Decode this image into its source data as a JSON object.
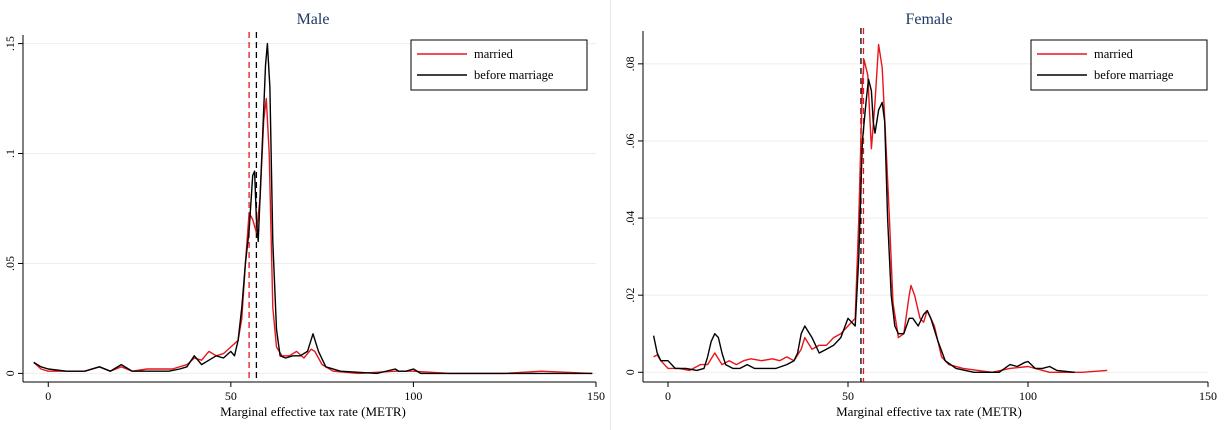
{
  "colors": {
    "married": "#e8161b",
    "before": "#000000",
    "title": "#1e3a64",
    "grid": "#eeeeee",
    "axis": "#000000"
  },
  "chart_data": [
    {
      "type": "line",
      "title": "Male",
      "xlabel": "Marginal effective tax rate (METR)",
      "ylabel": "",
      "xlim": [
        -5,
        150
      ],
      "ylim": [
        -0.003,
        0.153
      ],
      "x_ticks": [
        0,
        50,
        100,
        150
      ],
      "x_tick_labels": [
        "0",
        "50",
        "100",
        "150"
      ],
      "y_ticks": [
        0,
        0.05,
        0.1,
        0.15
      ],
      "y_tick_labels": [
        "0",
        ".05",
        ".1",
        ".15"
      ],
      "grid": true,
      "legend_position": "top-right",
      "legend": [
        "married",
        "before marriage"
      ],
      "vlines": [
        {
          "series": "married",
          "x": 55.0
        },
        {
          "series": "before marriage",
          "x": 57.0
        }
      ],
      "series": [
        {
          "name": "married",
          "color": "#e8161b",
          "points": [
            [
              -4,
              0.005
            ],
            [
              -2,
              0.002
            ],
            [
              0,
              0.001
            ],
            [
              5,
              0.001
            ],
            [
              10,
              0.001
            ],
            [
              14,
              0.003
            ],
            [
              17,
              0.001
            ],
            [
              20,
              0.003
            ],
            [
              23,
              0.001
            ],
            [
              27,
              0.002
            ],
            [
              30,
              0.002
            ],
            [
              34,
              0.002
            ],
            [
              38,
              0.004
            ],
            [
              40,
              0.007
            ],
            [
              42,
              0.006
            ],
            [
              44,
              0.01
            ],
            [
              46,
              0.008
            ],
            [
              48,
              0.009
            ],
            [
              50,
              0.012
            ],
            [
              52,
              0.015
            ],
            [
              53,
              0.025
            ],
            [
              54,
              0.05
            ],
            [
              55,
              0.073
            ],
            [
              56,
              0.07
            ],
            [
              57,
              0.064
            ],
            [
              58,
              0.08
            ],
            [
              59,
              0.115
            ],
            [
              59.7,
              0.125
            ],
            [
              60.5,
              0.1
            ],
            [
              61.5,
              0.03
            ],
            [
              62.5,
              0.012
            ],
            [
              64,
              0.008
            ],
            [
              66,
              0.008
            ],
            [
              68,
              0.01
            ],
            [
              70,
              0.007
            ],
            [
              72,
              0.011
            ],
            [
              73,
              0.01
            ],
            [
              75,
              0.004
            ],
            [
              78,
              0.001
            ],
            [
              85,
              0
            ],
            [
              95,
              0.001
            ],
            [
              97,
              0.001
            ],
            [
              100,
              0.001
            ],
            [
              110,
              0
            ],
            [
              125,
              0
            ],
            [
              135,
              0.001
            ],
            [
              149,
              0
            ]
          ]
        },
        {
          "name": "before marriage",
          "color": "#000000",
          "points": [
            [
              -4,
              0.005
            ],
            [
              -2,
              0.003
            ],
            [
              0,
              0.002
            ],
            [
              5,
              0.001
            ],
            [
              10,
              0.001
            ],
            [
              14,
              0.003
            ],
            [
              17,
              0.001
            ],
            [
              20,
              0.004
            ],
            [
              23,
              0.001
            ],
            [
              27,
              0.001
            ],
            [
              33,
              0.001
            ],
            [
              36,
              0.002
            ],
            [
              38,
              0.003
            ],
            [
              40,
              0.008
            ],
            [
              42,
              0.004
            ],
            [
              44,
              0.006
            ],
            [
              46,
              0.008
            ],
            [
              48,
              0.007
            ],
            [
              50,
              0.01
            ],
            [
              51,
              0.008
            ],
            [
              52,
              0.015
            ],
            [
              53,
              0.03
            ],
            [
              54,
              0.05
            ],
            [
              55,
              0.065
            ],
            [
              56,
              0.09
            ],
            [
              56.5,
              0.092
            ],
            [
              57,
              0.07
            ],
            [
              57.5,
              0.06
            ],
            [
              58.5,
              0.1
            ],
            [
              59.5,
              0.14
            ],
            [
              60,
              0.15
            ],
            [
              60.7,
              0.13
            ],
            [
              61.5,
              0.06
            ],
            [
              62.5,
              0.02
            ],
            [
              63.5,
              0.008
            ],
            [
              65,
              0.007
            ],
            [
              67,
              0.008
            ],
            [
              69,
              0.008
            ],
            [
              71,
              0.01
            ],
            [
              72.5,
              0.018
            ],
            [
              74,
              0.01
            ],
            [
              76,
              0.003
            ],
            [
              80,
              0.001
            ],
            [
              90,
              0
            ],
            [
              95,
              0.002
            ],
            [
              96,
              0.001
            ],
            [
              98,
              0.001
            ],
            [
              100,
              0.002
            ],
            [
              102,
              0
            ],
            [
              110,
              0
            ],
            [
              125,
              0
            ],
            [
              149,
              0
            ]
          ]
        }
      ]
    },
    {
      "type": "line",
      "title": "Female",
      "xlabel": "Marginal effective tax rate (METR)",
      "ylabel": "",
      "xlim": [
        -5,
        150
      ],
      "ylim": [
        -0.002,
        0.088
      ],
      "x_ticks": [
        0,
        50,
        100,
        150
      ],
      "x_tick_labels": [
        "0",
        "50",
        "100",
        "150"
      ],
      "y_ticks": [
        0,
        0.02,
        0.04,
        0.06,
        0.08
      ],
      "y_tick_labels": [
        "0",
        ".02",
        ".04",
        ".06",
        ".08"
      ],
      "grid": true,
      "legend_position": "top-right",
      "legend": [
        "married",
        "before marriage"
      ],
      "vlines": [
        {
          "series": "married",
          "x": 54.3
        },
        {
          "series": "before marriage",
          "x": 53.6
        }
      ],
      "series": [
        {
          "name": "married",
          "color": "#e8161b",
          "points": [
            [
              -4,
              0.004
            ],
            [
              -3,
              0.0045
            ],
            [
              -2,
              0.003
            ],
            [
              0,
              0.001
            ],
            [
              3,
              0.001
            ],
            [
              6,
              0.0005
            ],
            [
              9,
              0.002
            ],
            [
              11,
              0.002
            ],
            [
              13,
              0.005
            ],
            [
              15,
              0.002
            ],
            [
              17,
              0.003
            ],
            [
              19,
              0.002
            ],
            [
              21,
              0.003
            ],
            [
              23,
              0.0035
            ],
            [
              26,
              0.003
            ],
            [
              29,
              0.0035
            ],
            [
              31,
              0.003
            ],
            [
              33,
              0.004
            ],
            [
              35,
              0.003
            ],
            [
              37,
              0.006
            ],
            [
              38,
              0.009
            ],
            [
              40,
              0.006
            ],
            [
              42,
              0.007
            ],
            [
              44,
              0.007
            ],
            [
              46,
              0.009
            ],
            [
              48,
              0.01
            ],
            [
              50,
              0.012
            ],
            [
              52,
              0.014
            ],
            [
              53,
              0.04
            ],
            [
              54,
              0.075
            ],
            [
              54.5,
              0.081
            ],
            [
              55.5,
              0.077
            ],
            [
              56.5,
              0.058
            ],
            [
              57.5,
              0.07
            ],
            [
              58.5,
              0.085
            ],
            [
              59.5,
              0.079
            ],
            [
              60.5,
              0.06
            ],
            [
              61.5,
              0.04
            ],
            [
              62.5,
              0.018
            ],
            [
              64,
              0.009
            ],
            [
              65.5,
              0.01
            ],
            [
              67,
              0.02
            ],
            [
              67.5,
              0.0225
            ],
            [
              68.5,
              0.02
            ],
            [
              70,
              0.014
            ],
            [
              71,
              0.013
            ],
            [
              72,
              0.016
            ],
            [
              74,
              0.012
            ],
            [
              76,
              0.004
            ],
            [
              78,
              0.002
            ],
            [
              82,
              0.001
            ],
            [
              90,
              0
            ],
            [
              95,
              0.001
            ],
            [
              100,
              0.0015
            ],
            [
              102,
              0.001
            ],
            [
              106,
              0
            ],
            [
              115,
              0
            ],
            [
              122,
              0.0005
            ]
          ]
        },
        {
          "name": "before marriage",
          "color": "#000000",
          "points": [
            [
              -4,
              0.0095
            ],
            [
              -3,
              0.005
            ],
            [
              -2,
              0.003
            ],
            [
              0,
              0.003
            ],
            [
              2,
              0.001
            ],
            [
              5,
              0.001
            ],
            [
              8,
              0.0005
            ],
            [
              10,
              0.001
            ],
            [
              11,
              0.004
            ],
            [
              12,
              0.008
            ],
            [
              13,
              0.01
            ],
            [
              14,
              0.009
            ],
            [
              15,
              0.005
            ],
            [
              16,
              0.002
            ],
            [
              18,
              0.001
            ],
            [
              20,
              0.001
            ],
            [
              22,
              0.002
            ],
            [
              24,
              0.001
            ],
            [
              27,
              0.001
            ],
            [
              30,
              0.001
            ],
            [
              33,
              0.002
            ],
            [
              35,
              0.003
            ],
            [
              36,
              0.005
            ],
            [
              37,
              0.01
            ],
            [
              38,
              0.012
            ],
            [
              40,
              0.009
            ],
            [
              42,
              0.005
            ],
            [
              44,
              0.006
            ],
            [
              46,
              0.007
            ],
            [
              48,
              0.009
            ],
            [
              50,
              0.014
            ],
            [
              51,
              0.013
            ],
            [
              52,
              0.012
            ],
            [
              53,
              0.03
            ],
            [
              54,
              0.06
            ],
            [
              55,
              0.07
            ],
            [
              55.7,
              0.076
            ],
            [
              56.5,
              0.073
            ],
            [
              57,
              0.065
            ],
            [
              57.5,
              0.062
            ],
            [
              58.5,
              0.068
            ],
            [
              59.5,
              0.07
            ],
            [
              60.2,
              0.065
            ],
            [
              61,
              0.04
            ],
            [
              62,
              0.02
            ],
            [
              63,
              0.012
            ],
            [
              64,
              0.01
            ],
            [
              65.5,
              0.01
            ],
            [
              67,
              0.014
            ],
            [
              68,
              0.014
            ],
            [
              69.5,
              0.012
            ],
            [
              71,
              0.015
            ],
            [
              72,
              0.016
            ],
            [
              73,
              0.014
            ],
            [
              75,
              0.008
            ],
            [
              77,
              0.003
            ],
            [
              80,
              0.001
            ],
            [
              85,
              0
            ],
            [
              92,
              0
            ],
            [
              95,
              0.002
            ],
            [
              97,
              0.0015
            ],
            [
              99,
              0.0025
            ],
            [
              100,
              0.0028
            ],
            [
              102,
              0.001
            ],
            [
              104,
              0.001
            ],
            [
              106,
              0.0015
            ],
            [
              108,
              0.0005
            ],
            [
              113,
              0
            ]
          ]
        }
      ]
    }
  ]
}
